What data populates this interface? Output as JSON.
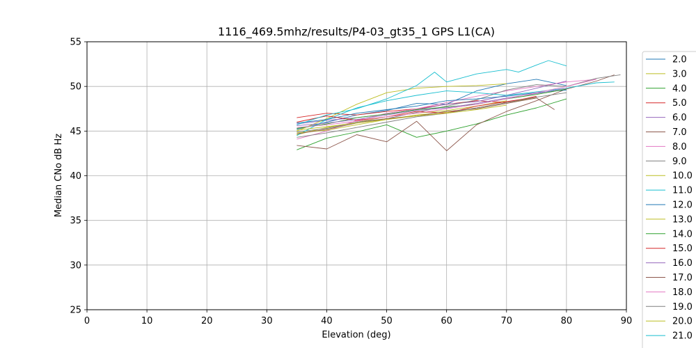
{
  "chart_data": {
    "type": "line",
    "title": "1116_469.5mhz/results/P4-03_gt35_1 GPS L1(CA)",
    "xlabel": "Elevation (deg)",
    "ylabel": "Median CNo dB Hz",
    "xlim": [
      0,
      90
    ],
    "ylim": [
      25,
      55
    ],
    "xticks": [
      0,
      10,
      20,
      30,
      40,
      50,
      60,
      70,
      80,
      90
    ],
    "yticks": [
      25,
      30,
      35,
      40,
      45,
      50,
      55
    ],
    "grid": true,
    "legend_position": "right (outside, clipped)",
    "colors": [
      "#1f77b4",
      "#bcbd22",
      "#2ca02c",
      "#d62728",
      "#9467bd",
      "#8c564b",
      "#e377c2",
      "#7f7f7f",
      "#bcbd22",
      "#17becf"
    ],
    "series": [
      {
        "name": "2.0",
        "x": [
          35,
          40,
          45,
          50,
          55,
          60,
          65,
          70,
          75,
          80
        ],
        "values": [
          45.2,
          46.0,
          46.8,
          47.3,
          48.1,
          48.0,
          49.5,
          50.3,
          50.8,
          50.1
        ]
      },
      {
        "name": "3.0",
        "x": [
          35,
          40,
          45,
          50,
          55,
          60,
          65,
          70
        ],
        "values": [
          44.6,
          45.4,
          46.0,
          46.6,
          47.0,
          47.3,
          47.8,
          48.4
        ]
      },
      {
        "name": "4.0",
        "x": [
          35,
          40,
          45,
          50,
          55,
          60,
          65,
          70,
          75,
          80
        ],
        "values": [
          42.9,
          44.2,
          44.9,
          45.7,
          44.3,
          45.0,
          45.8,
          46.8,
          47.6,
          48.6
        ]
      },
      {
        "name": "5.0",
        "x": [
          35,
          40,
          45,
          50,
          55,
          60,
          65,
          70,
          75
        ],
        "values": [
          46.5,
          47.0,
          46.8,
          47.2,
          47.5,
          48.0,
          48.4,
          48.2,
          48.9
        ]
      },
      {
        "name": "6.0",
        "x": [
          35,
          40,
          45,
          50,
          55,
          60,
          65,
          70,
          75,
          80
        ],
        "values": [
          45.8,
          46.2,
          46.5,
          46.9,
          47.4,
          48.0,
          48.3,
          49.0,
          49.8,
          50.6
        ]
      },
      {
        "name": "7.0",
        "x": [
          35,
          40,
          45,
          50,
          55,
          60,
          65,
          70,
          75,
          80,
          85,
          88
        ],
        "values": [
          43.4,
          43.0,
          44.6,
          43.8,
          46.1,
          42.8,
          45.7,
          47.2,
          48.4,
          49.7,
          50.6,
          51.3
        ]
      },
      {
        "name": "8.0",
        "x": [
          35,
          40,
          45,
          50,
          55,
          60,
          65,
          70,
          75,
          80,
          85
        ],
        "values": [
          44.1,
          45.0,
          46.2,
          47.0,
          47.5,
          48.2,
          48.9,
          49.5,
          50.0,
          50.5,
          50.8
        ]
      },
      {
        "name": "9.0",
        "x": [
          35,
          40,
          45,
          50,
          55,
          60,
          65,
          70,
          75,
          80,
          85,
          89
        ],
        "values": [
          44.9,
          45.3,
          46.0,
          46.4,
          47.1,
          47.8,
          48.5,
          49.6,
          50.2,
          50.0,
          50.9,
          51.3
        ]
      },
      {
        "name": "10.0",
        "x": [
          35,
          40,
          45,
          50,
          55,
          60,
          65,
          70
        ],
        "values": [
          45.0,
          46.4,
          48.0,
          49.3,
          49.8,
          50.0,
          50.1,
          50.3
        ]
      },
      {
        "name": "11.0",
        "x": [
          35,
          40,
          45,
          50,
          55,
          60,
          65,
          70,
          75,
          80,
          85,
          88
        ],
        "values": [
          44.5,
          46.3,
          47.6,
          48.4,
          49.0,
          49.5,
          49.3,
          49.0,
          49.4,
          49.8,
          50.4,
          50.5
        ]
      },
      {
        "name": "12.0",
        "x": [
          35,
          40,
          45,
          50,
          55,
          60,
          65,
          70,
          75,
          80
        ],
        "values": [
          45.9,
          46.3,
          47.0,
          47.4,
          47.8,
          48.4,
          48.6,
          48.9,
          49.3,
          49.6
        ]
      },
      {
        "name": "13.0",
        "x": [
          35,
          40,
          45,
          50,
          55,
          60,
          65,
          70,
          75
        ],
        "values": [
          44.8,
          45.1,
          45.7,
          46.3,
          46.8,
          47.1,
          47.6,
          48.2,
          48.7
        ]
      },
      {
        "name": "14.0",
        "x": [
          35,
          40,
          45,
          50,
          55,
          60,
          65,
          70,
          75,
          80
        ],
        "values": [
          45.3,
          45.8,
          46.5,
          46.9,
          47.4,
          47.7,
          48.0,
          48.6,
          49.1,
          49.7
        ]
      },
      {
        "name": "15.0",
        "x": [
          35,
          40,
          45,
          50,
          55,
          60,
          65,
          70,
          75
        ],
        "values": [
          46.0,
          46.7,
          46.2,
          46.6,
          47.2,
          47.0,
          47.8,
          48.3,
          48.8
        ]
      },
      {
        "name": "16.0",
        "x": [
          35,
          40,
          45,
          50,
          55,
          60,
          65,
          70,
          75,
          80
        ],
        "values": [
          45.6,
          45.9,
          46.3,
          46.8,
          47.3,
          47.6,
          48.1,
          48.7,
          49.2,
          49.8
        ]
      },
      {
        "name": "17.0",
        "x": [
          35,
          40,
          45,
          50,
          55,
          60,
          65,
          70,
          75,
          78
        ],
        "values": [
          44.7,
          45.2,
          45.9,
          46.4,
          46.7,
          47.2,
          47.5,
          48.1,
          48.7,
          47.4
        ]
      },
      {
        "name": "18.0",
        "x": [
          35,
          40,
          45,
          50,
          55,
          60,
          65,
          70,
          75,
          80,
          85
        ],
        "values": [
          45.4,
          45.7,
          46.1,
          46.6,
          47.0,
          47.5,
          48.0,
          48.6,
          49.3,
          50.0,
          50.8
        ]
      },
      {
        "name": "19.0",
        "x": [
          35,
          40,
          45,
          50,
          55,
          60,
          65,
          70,
          75,
          80
        ],
        "values": [
          44.3,
          44.8,
          45.4,
          46.0,
          46.6,
          47.0,
          47.6,
          48.2,
          48.8,
          49.3
        ]
      },
      {
        "name": "20.0",
        "x": [
          35,
          40,
          45,
          50,
          55,
          60,
          65,
          70
        ],
        "values": [
          45.1,
          45.5,
          45.9,
          46.3,
          46.7,
          47.0,
          47.4,
          47.9
        ]
      },
      {
        "name": "21.0",
        "x": [
          35,
          40,
          45,
          50,
          55,
          58,
          60,
          65,
          70,
          72,
          75,
          77,
          80
        ],
        "values": [
          45.7,
          46.8,
          47.5,
          48.6,
          50.1,
          51.6,
          50.5,
          51.4,
          51.9,
          51.6,
          52.4,
          52.9,
          52.3
        ]
      }
    ]
  }
}
